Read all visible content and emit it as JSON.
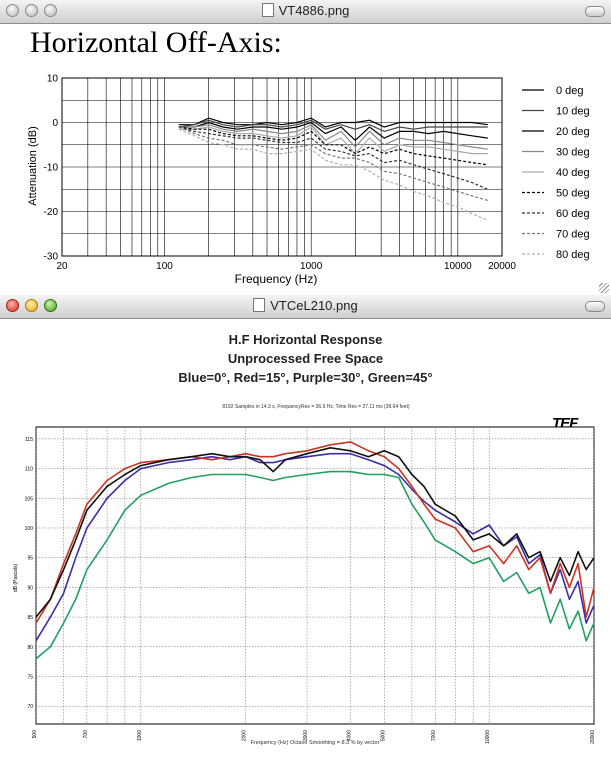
{
  "windows": [
    {
      "title": "VT4886.png",
      "heading": "Horizontal Off-Axis:",
      "chart_data": {
        "type": "line",
        "xlabel": "Frequency (Hz)",
        "ylabel": "Attenuation (dB)",
        "x_scale": "log",
        "xlim": [
          20,
          20000
        ],
        "ylim": [
          -30,
          10
        ],
        "xticks": [
          "20",
          "100",
          "1000",
          "10000",
          "20000"
        ],
        "yticks": [
          "10",
          "0",
          "-10",
          "-20",
          "-30"
        ],
        "grid": true,
        "legend_position": "right",
        "x": [
          125,
          160,
          200,
          250,
          315,
          400,
          500,
          630,
          800,
          1000,
          1250,
          1600,
          2000,
          2500,
          3150,
          4000,
          5000,
          6300,
          8000,
          10000,
          12500,
          16000
        ],
        "series": [
          {
            "name": "0 deg",
            "color": "#000000",
            "dash": "solid",
            "values": [
              -0.5,
              -0.5,
              1.0,
              0.0,
              -0.5,
              -0.5,
              0.0,
              -0.5,
              0.0,
              1.0,
              -1.0,
              0.0,
              0.0,
              0.5,
              -1.0,
              0.0,
              0.0,
              0.0,
              0.0,
              0.0,
              0.0,
              -0.5
            ]
          },
          {
            "name": "10 deg",
            "color": "#444444",
            "dash": "solid",
            "values": [
              -1.0,
              -0.5,
              0.5,
              -0.5,
              -1.0,
              -0.5,
              -0.5,
              -1.0,
              -0.5,
              0.5,
              -1.5,
              -0.5,
              -1.5,
              -0.5,
              -2.0,
              -1.0,
              -1.5,
              -1.0,
              -1.0,
              -1.0,
              -1.0,
              -1.0
            ]
          },
          {
            "name": "20 deg",
            "color": "#000000",
            "dash": "solid",
            "values": [
              -1.0,
              -1.0,
              0.0,
              -1.0,
              -1.5,
              -1.0,
              -1.0,
              -1.5,
              -1.0,
              0.0,
              -2.5,
              -1.0,
              -4.0,
              -1.0,
              -3.5,
              -2.0,
              -2.0,
              -2.5,
              -2.0,
              -2.5,
              -3.0,
              -3.5
            ]
          },
          {
            "name": "30 deg",
            "color": "#888888",
            "dash": "solid",
            "values": [
              -1.0,
              -1.0,
              -0.5,
              -1.5,
              -2.0,
              -1.5,
              -2.0,
              -2.5,
              -2.0,
              -0.5,
              -4.0,
              -2.0,
              -5.5,
              -2.0,
              -5.0,
              -3.5,
              -4.0,
              -4.0,
              -4.5,
              -5.0,
              -5.5,
              -6.0
            ]
          },
          {
            "name": "40 deg",
            "color": "#aaaaaa",
            "dash": "solid",
            "values": [
              -1.5,
              -1.5,
              -1.0,
              -2.0,
              -2.5,
              -2.5,
              -3.0,
              -3.5,
              -3.0,
              -1.0,
              -5.0,
              -3.5,
              -7.0,
              -3.5,
              -6.5,
              -5.0,
              -5.5,
              -5.5,
              -6.0,
              -6.5,
              -7.0,
              -7.0
            ]
          },
          {
            "name": "50 deg",
            "color": "#000000",
            "dash": "dash",
            "values": [
              -1.0,
              -1.5,
              -1.5,
              -2.5,
              -3.0,
              -3.0,
              -3.5,
              -4.0,
              -3.5,
              -2.0,
              -5.0,
              -5.0,
              -7.0,
              -5.5,
              -7.0,
              -6.0,
              -7.0,
              -7.5,
              -8.0,
              -8.5,
              -9.0,
              -9.5
            ]
          },
          {
            "name": "60 deg",
            "color": "#333333",
            "dash": "dash",
            "values": [
              -1.0,
              -2.0,
              -2.5,
              -3.0,
              -3.5,
              -3.5,
              -4.0,
              -4.5,
              -4.5,
              -3.5,
              -6.0,
              -6.5,
              -7.5,
              -7.0,
              -9.0,
              -8.5,
              -9.5,
              -10.5,
              -11.5,
              -12.5,
              -13.5,
              -15.0
            ]
          },
          {
            "name": "70 deg",
            "color": "#777777",
            "dash": "dash",
            "values": [
              -1.0,
              -2.5,
              -3.5,
              -4.0,
              -5.0,
              -5.0,
              -5.5,
              -6.0,
              -5.5,
              -5.0,
              -7.0,
              -8.0,
              -8.0,
              -9.0,
              -11.0,
              -11.5,
              -12.5,
              -13.5,
              -14.5,
              -15.5,
              -16.5,
              -17.5
            ]
          },
          {
            "name": "80 deg",
            "color": "#b0b0b0",
            "dash": "dash",
            "values": [
              -1.5,
              -3.0,
              -4.5,
              -5.0,
              -6.0,
              -6.0,
              -7.0,
              -7.0,
              -6.5,
              -6.0,
              -8.5,
              -9.5,
              -9.5,
              -11.0,
              -13.0,
              -14.0,
              -15.5,
              -16.5,
              -18.0,
              -19.0,
              -20.5,
              -22.0
            ]
          }
        ]
      }
    },
    {
      "title": "VTCeL210.png",
      "chart_title_lines": [
        "H.F Horizontal Response",
        "Unprocessed Free Space",
        "Blue=0°, Red=15°, Purple=30°, Green=45°"
      ],
      "subtitle": "8192 Samples in 14.3 s, FrequencyRes = 36.9 Hz, Time Res = 27.11 ms (39.64 feet)",
      "logo": "TEF",
      "chart_data": {
        "type": "line",
        "xlabel": "Frequency (Hz) Octave Smoothing = 8.3 % by vector",
        "ylabel": "dB (Pascals)",
        "x_scale": "log",
        "xlim": [
          500,
          20000
        ],
        "ylim": [
          67,
          117
        ],
        "xticks": [
          "500",
          "700",
          "1000",
          "2000",
          "3000",
          "4000",
          "5000",
          "7000",
          "10000",
          "20000"
        ],
        "yticks": [
          "115",
          "110",
          "105",
          "100",
          "95",
          "90",
          "85",
          "80",
          "75",
          "70"
        ],
        "grid": true,
        "x": [
          500,
          550,
          600,
          650,
          700,
          800,
          900,
          1000,
          1200,
          1400,
          1600,
          1800,
          2000,
          2200,
          2400,
          2600,
          3000,
          3500,
          4000,
          4500,
          5000,
          5500,
          6000,
          6500,
          7000,
          8000,
          9000,
          10000,
          11000,
          12000,
          13000,
          14000,
          15000,
          16000,
          17000,
          18000,
          19000,
          20000
        ],
        "series": [
          {
            "name": "Blue=0°",
            "color": "#111111",
            "values": [
              85,
              88,
              93,
              98,
              103,
              107,
              109,
              110.5,
              111.5,
              112,
              112.5,
              112,
              112,
              111.5,
              109.5,
              111.5,
              112.5,
              113.5,
              113,
              112,
              113,
              112,
              109,
              107,
              104,
              102,
              98,
              99,
              97,
              99,
              95,
              96,
              91,
              95,
              92,
              96,
              93,
              95
            ]
          },
          {
            "name": "Red=15°",
            "color": "#cc3322",
            "values": [
              84,
              88,
              94,
              99,
              104,
              108,
              110,
              111,
              111.5,
              112,
              111.5,
              112,
              112.5,
              112,
              112,
              112.5,
              113,
              114,
              114.5,
              113,
              112,
              110,
              107,
              104,
              101.5,
              100,
              96,
              97,
              94,
              97,
              93,
              95,
              89,
              94,
              90,
              94,
              85,
              90
            ]
          },
          {
            "name": "Purple=30°",
            "color": "#3a2fa8",
            "values": [
              81,
              85,
              89,
              95,
              100,
              105,
              108,
              110,
              111,
              111.5,
              112,
              111.5,
              112,
              111,
              111,
              111.5,
              112,
              112.5,
              112.5,
              111.5,
              110.5,
              109,
              106.5,
              104.5,
              103,
              101,
              99,
              100.5,
              97,
              98.5,
              94,
              95.5,
              89,
              93,
              88,
              91,
              84,
              87
            ]
          },
          {
            "name": "Green=45°",
            "color": "#22a060",
            "values": [
              78,
              80,
              84,
              88,
              93,
              98,
              103,
              105.5,
              107.5,
              108.5,
              109,
              109,
              109,
              108.5,
              108,
              108.5,
              109,
              109.5,
              109.5,
              109,
              109,
              108.5,
              104,
              101,
              98,
              96,
              94,
              95,
              91,
              92.5,
              89,
              90,
              84,
              88,
              83,
              86,
              81,
              84
            ]
          }
        ]
      }
    }
  ],
  "colors": {
    "accent_blue": "#3a2fa8",
    "accent_red": "#cc3322",
    "accent_green": "#22a060"
  }
}
